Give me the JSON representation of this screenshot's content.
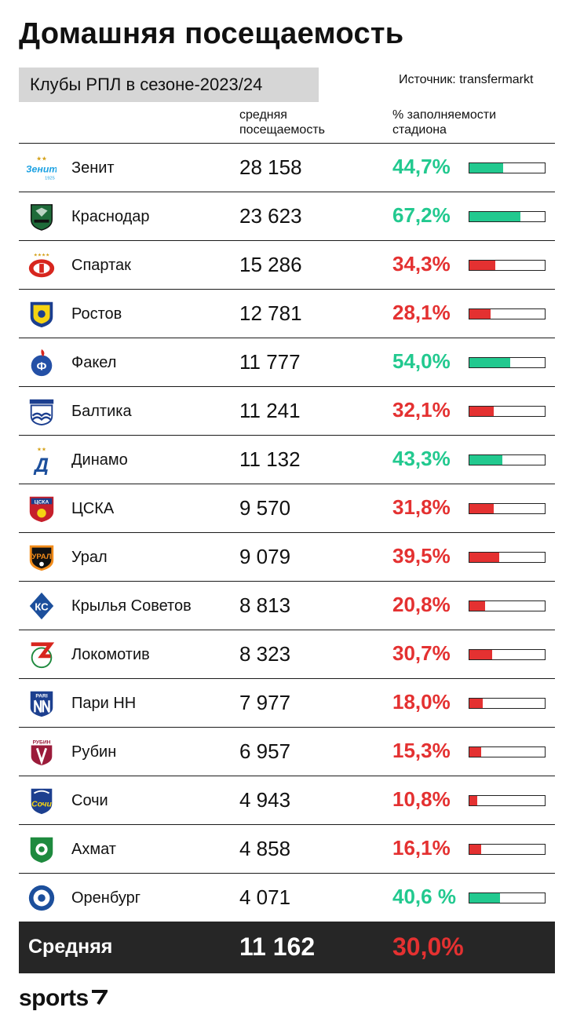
{
  "title": "Домашняя посещаемость",
  "subtitle": "Клубы РПЛ в сезоне-2023/24",
  "source": "Источник: transfermarkt",
  "headers": {
    "attendance": [
      "средняя",
      "посещаемость"
    ],
    "fill": [
      "% заполняемости",
      "стадиона"
    ]
  },
  "colors": {
    "above": "#22c98f",
    "below": "#e43131"
  },
  "chart_data": {
    "type": "table",
    "columns": [
      "club",
      "attendance",
      "fill_pct"
    ],
    "rows": [
      {
        "club": "Зенит",
        "logo": "zenit-logo",
        "attendance": "28 158",
        "pct": "44,7%",
        "value": 44.7,
        "color": "green"
      },
      {
        "club": "Краснодар",
        "logo": "krasnodar-logo",
        "attendance": "23 623",
        "pct": "67,2%",
        "value": 67.2,
        "color": "green"
      },
      {
        "club": "Спартак",
        "logo": "spartak-logo",
        "attendance": "15 286",
        "pct": "34,3%",
        "value": 34.3,
        "color": "red"
      },
      {
        "club": "Ростов",
        "logo": "rostov-logo",
        "attendance": "12 781",
        "pct": "28,1%",
        "value": 28.1,
        "color": "red"
      },
      {
        "club": "Факел",
        "logo": "fakel-logo",
        "attendance": "11 777",
        "pct": "54,0%",
        "value": 54.0,
        "color": "green"
      },
      {
        "club": "Балтика",
        "logo": "baltika-logo",
        "attendance": "11 241",
        "pct": "32,1%",
        "value": 32.1,
        "color": "red"
      },
      {
        "club": "Динамо",
        "logo": "dynamo-logo",
        "attendance": "11 132",
        "pct": "43,3%",
        "value": 43.3,
        "color": "green"
      },
      {
        "club": "ЦСКА",
        "logo": "cska-logo",
        "attendance": "9 570",
        "pct": "31,8%",
        "value": 31.8,
        "color": "red"
      },
      {
        "club": "Урал",
        "logo": "ural-logo",
        "attendance": "9 079",
        "pct": "39,5%",
        "value": 39.5,
        "color": "red"
      },
      {
        "club": "Крылья Советов",
        "logo": "krylia-logo",
        "attendance": "8 813",
        "pct": "20,8%",
        "value": 20.8,
        "color": "red"
      },
      {
        "club": "Локомотив",
        "logo": "lokomotiv-logo",
        "attendance": "8 323",
        "pct": "30,7%",
        "value": 30.7,
        "color": "red"
      },
      {
        "club": "Пари НН",
        "logo": "pari-nn-logo",
        "attendance": "7 977",
        "pct": "18,0%",
        "value": 18.0,
        "color": "red"
      },
      {
        "club": "Рубин",
        "logo": "rubin-logo",
        "attendance": "6 957",
        "pct": "15,3%",
        "value": 15.3,
        "color": "red"
      },
      {
        "club": "Сочи",
        "logo": "sochi-logo",
        "attendance": "4 943",
        "pct": "10,8%",
        "value": 10.8,
        "color": "red"
      },
      {
        "club": "Ахмат",
        "logo": "akhmat-logo",
        "attendance": "4 858",
        "pct": "16,1%",
        "value": 16.1,
        "color": "red"
      },
      {
        "club": "Оренбург",
        "logo": "orenburg-logo",
        "attendance": "4 071",
        "pct": "40,6 %",
        "value": 40.6,
        "color": "green"
      }
    ],
    "average": {
      "label": "Средняя",
      "attendance": "11 162",
      "pct": "30,0%",
      "value": 30.0
    },
    "bar_range": [
      0,
      100
    ]
  },
  "brand": "sports"
}
